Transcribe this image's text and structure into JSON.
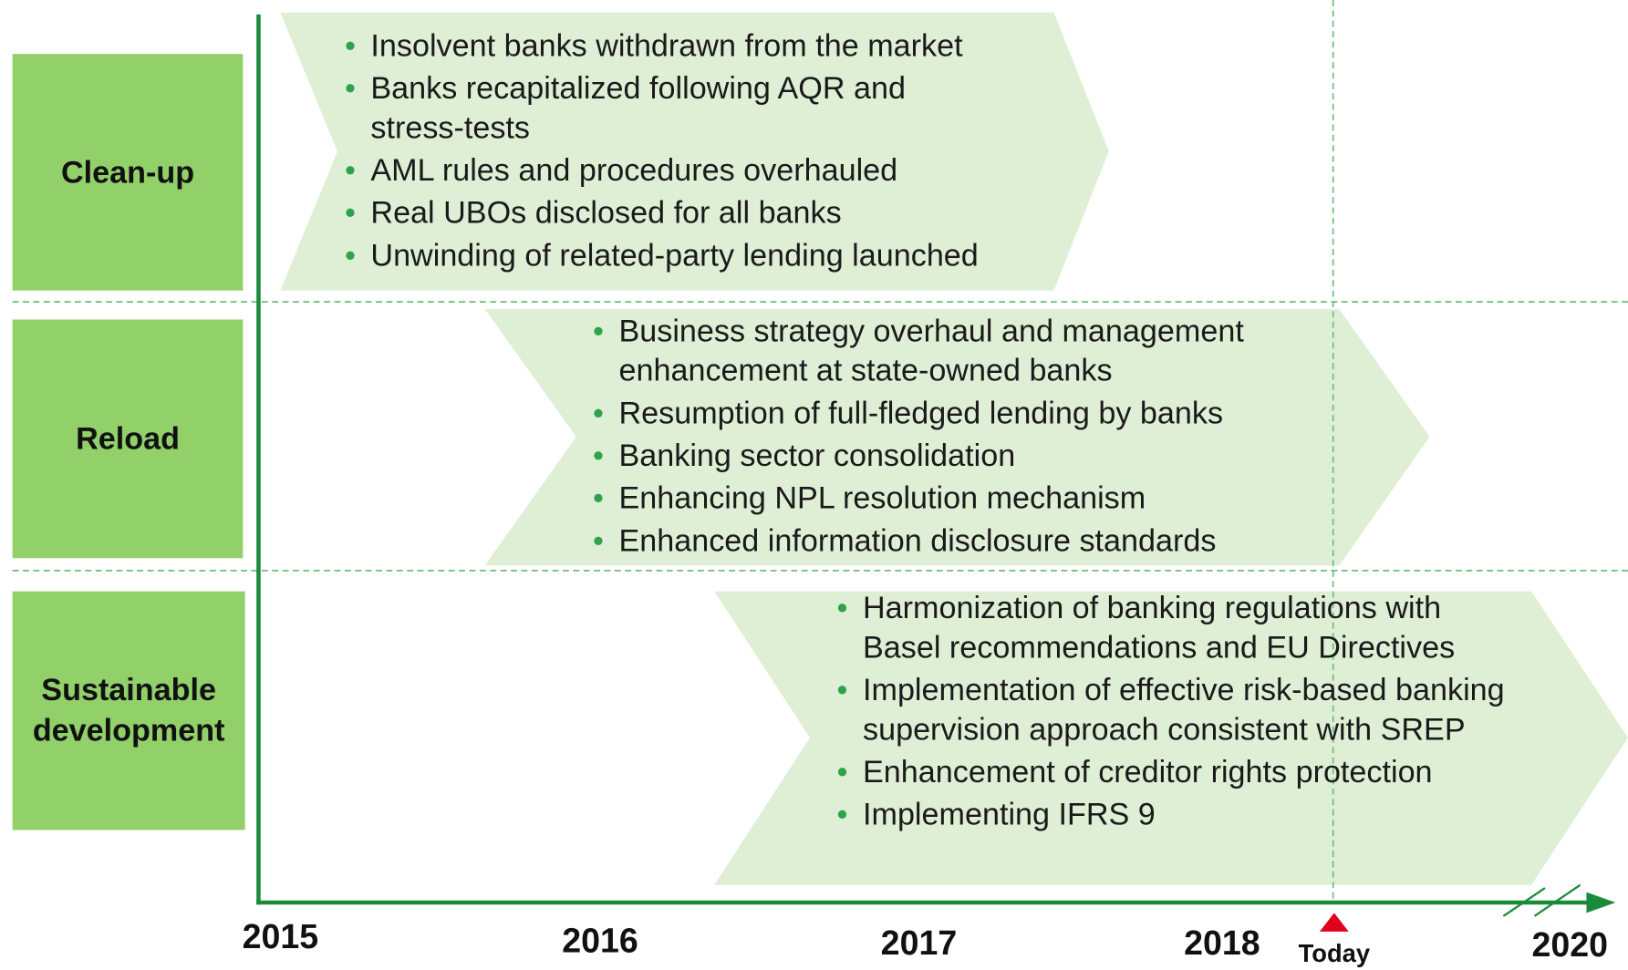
{
  "stages": [
    {
      "label": "Clean-up",
      "items": [
        "Insolvent banks withdrawn from the market",
        "Banks recapitalized following AQR and stress-tests",
        "AML rules and procedures overhauled",
        "Real UBOs disclosed for all banks",
        "Unwinding of related-party lending launched"
      ]
    },
    {
      "label": "Reload",
      "items": [
        "Business strategy overhaul and management enhancement at state-owned banks",
        "Resumption of full-fledged lending by banks",
        "Banking sector consolidation",
        "Enhancing NPL resolution mechanism",
        "Enhanced information disclosure standards"
      ]
    },
    {
      "label": "Sustainable development",
      "items": [
        "Harmonization of banking regulations with Basel recommendations and EU Directives",
        "Implementation of effective risk-based banking supervision approach consistent with SREP",
        "Enhancement of creditor rights protection",
        "Implementing IFRS 9"
      ]
    }
  ],
  "years": [
    "2015",
    "2016",
    "2017",
    "2018",
    "2020"
  ],
  "today": "Today"
}
